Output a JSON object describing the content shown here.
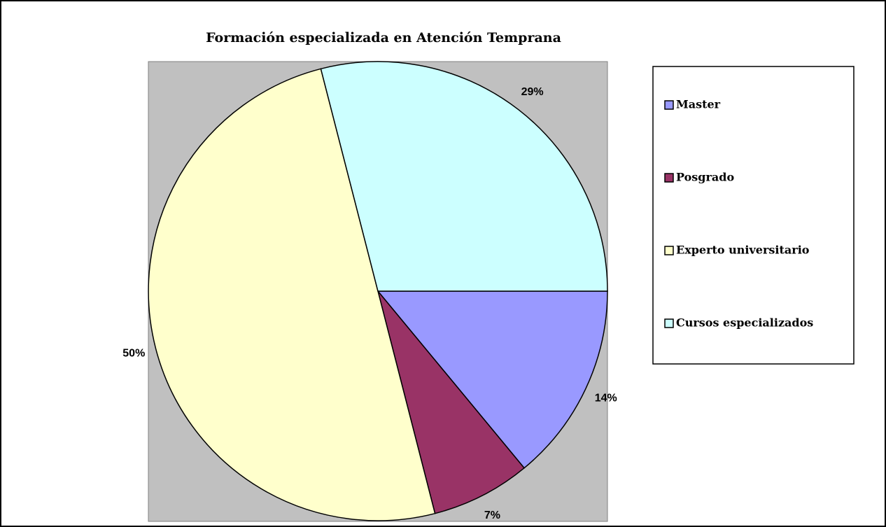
{
  "chart_data": {
    "type": "pie",
    "title": "Formación especializada en Atención Temprana",
    "categories": [
      "Master",
      "Posgrado",
      "Experto universitario",
      "Cursos especializados"
    ],
    "values": [
      14,
      7,
      50,
      29
    ],
    "value_labels": [
      "14%",
      "7%",
      "50%",
      "29%"
    ],
    "colors": [
      "#9999ff",
      "#993366",
      "#ffffcc",
      "#ccffff"
    ],
    "legend": "right"
  }
}
